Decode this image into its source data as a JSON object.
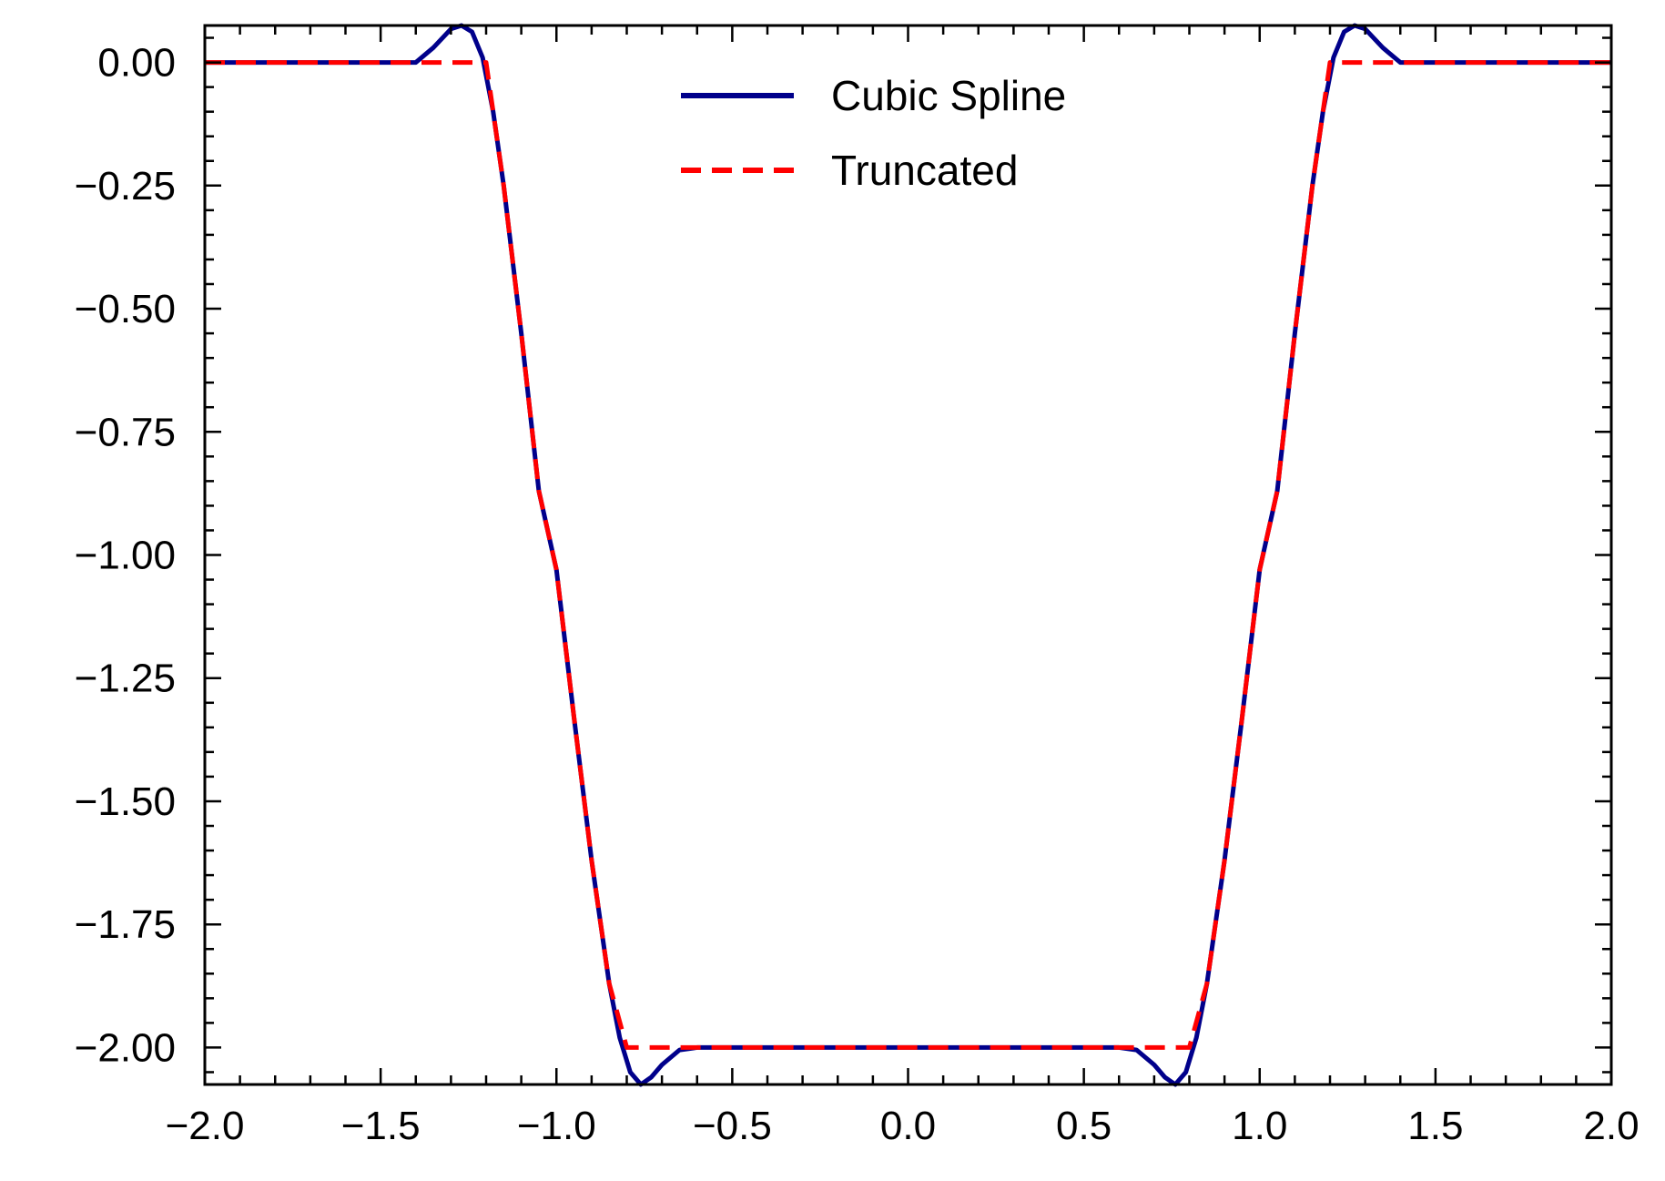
{
  "chart_data": {
    "type": "line",
    "title": "",
    "xlabel": "",
    "ylabel": "",
    "xlim": [
      -2.0,
      2.0
    ],
    "ylim": [
      -2.075,
      0.075
    ],
    "x_ticks": [
      -2.0,
      -1.5,
      -1.0,
      -0.5,
      0.0,
      0.5,
      1.0,
      1.5,
      2.0
    ],
    "x_tick_labels": [
      "−2.0",
      "−1.5",
      "−1.0",
      "−0.5",
      "0.0",
      "0.5",
      "1.0",
      "1.5",
      "2.0"
    ],
    "y_ticks": [
      0.0,
      -0.25,
      -0.5,
      -0.75,
      -1.0,
      -1.25,
      -1.5,
      -1.75,
      -2.0
    ],
    "y_tick_labels": [
      "0.00",
      "−0.25",
      "−0.50",
      "−0.75",
      "−1.00",
      "−1.25",
      "−1.50",
      "−1.75",
      "−2.00"
    ],
    "grid": false,
    "legend_position": "top-center",
    "series": [
      {
        "name": "Cubic Spline",
        "color": "#00008b",
        "style": "solid",
        "x": [
          -2.0,
          -1.4,
          -1.35,
          -1.3,
          -1.27,
          -1.24,
          -1.21,
          -1.18,
          -1.15,
          -1.1,
          -1.05,
          -1.0,
          -0.95,
          -0.9,
          -0.85,
          -0.82,
          -0.79,
          -0.76,
          -0.73,
          -0.7,
          -0.65,
          -0.6,
          0.6,
          0.65,
          0.7,
          0.73,
          0.76,
          0.79,
          0.82,
          0.85,
          0.9,
          0.95,
          1.0,
          1.05,
          1.1,
          1.15,
          1.18,
          1.21,
          1.24,
          1.27,
          1.3,
          1.35,
          1.4,
          2.0
        ],
        "y": [
          0.0,
          0.0,
          0.03,
          0.068,
          0.075,
          0.062,
          0.01,
          -0.1,
          -0.25,
          -0.55,
          -0.87,
          -1.03,
          -1.33,
          -1.62,
          -1.87,
          -1.98,
          -2.05,
          -2.075,
          -2.06,
          -2.035,
          -2.005,
          -2.0,
          -2.0,
          -2.005,
          -2.035,
          -2.06,
          -2.075,
          -2.05,
          -1.98,
          -1.87,
          -1.62,
          -1.33,
          -1.03,
          -0.87,
          -0.55,
          -0.25,
          -0.1,
          0.01,
          0.062,
          0.075,
          0.068,
          0.03,
          0.0,
          0.0
        ]
      },
      {
        "name": "Truncated",
        "color": "#ff0000",
        "style": "dashed",
        "x": [
          -2.0,
          -1.2,
          -1.18,
          -1.15,
          -1.1,
          -1.05,
          -1.0,
          -0.95,
          -0.9,
          -0.85,
          -0.8,
          0.8,
          0.85,
          0.9,
          0.95,
          1.0,
          1.05,
          1.1,
          1.15,
          1.18,
          1.2,
          2.0
        ],
        "y": [
          0.0,
          0.0,
          -0.1,
          -0.25,
          -0.55,
          -0.87,
          -1.03,
          -1.33,
          -1.62,
          -1.87,
          -2.0,
          -2.0,
          -1.87,
          -1.62,
          -1.33,
          -1.03,
          -0.87,
          -0.55,
          -0.25,
          -0.1,
          0.0,
          0.0
        ]
      }
    ]
  }
}
